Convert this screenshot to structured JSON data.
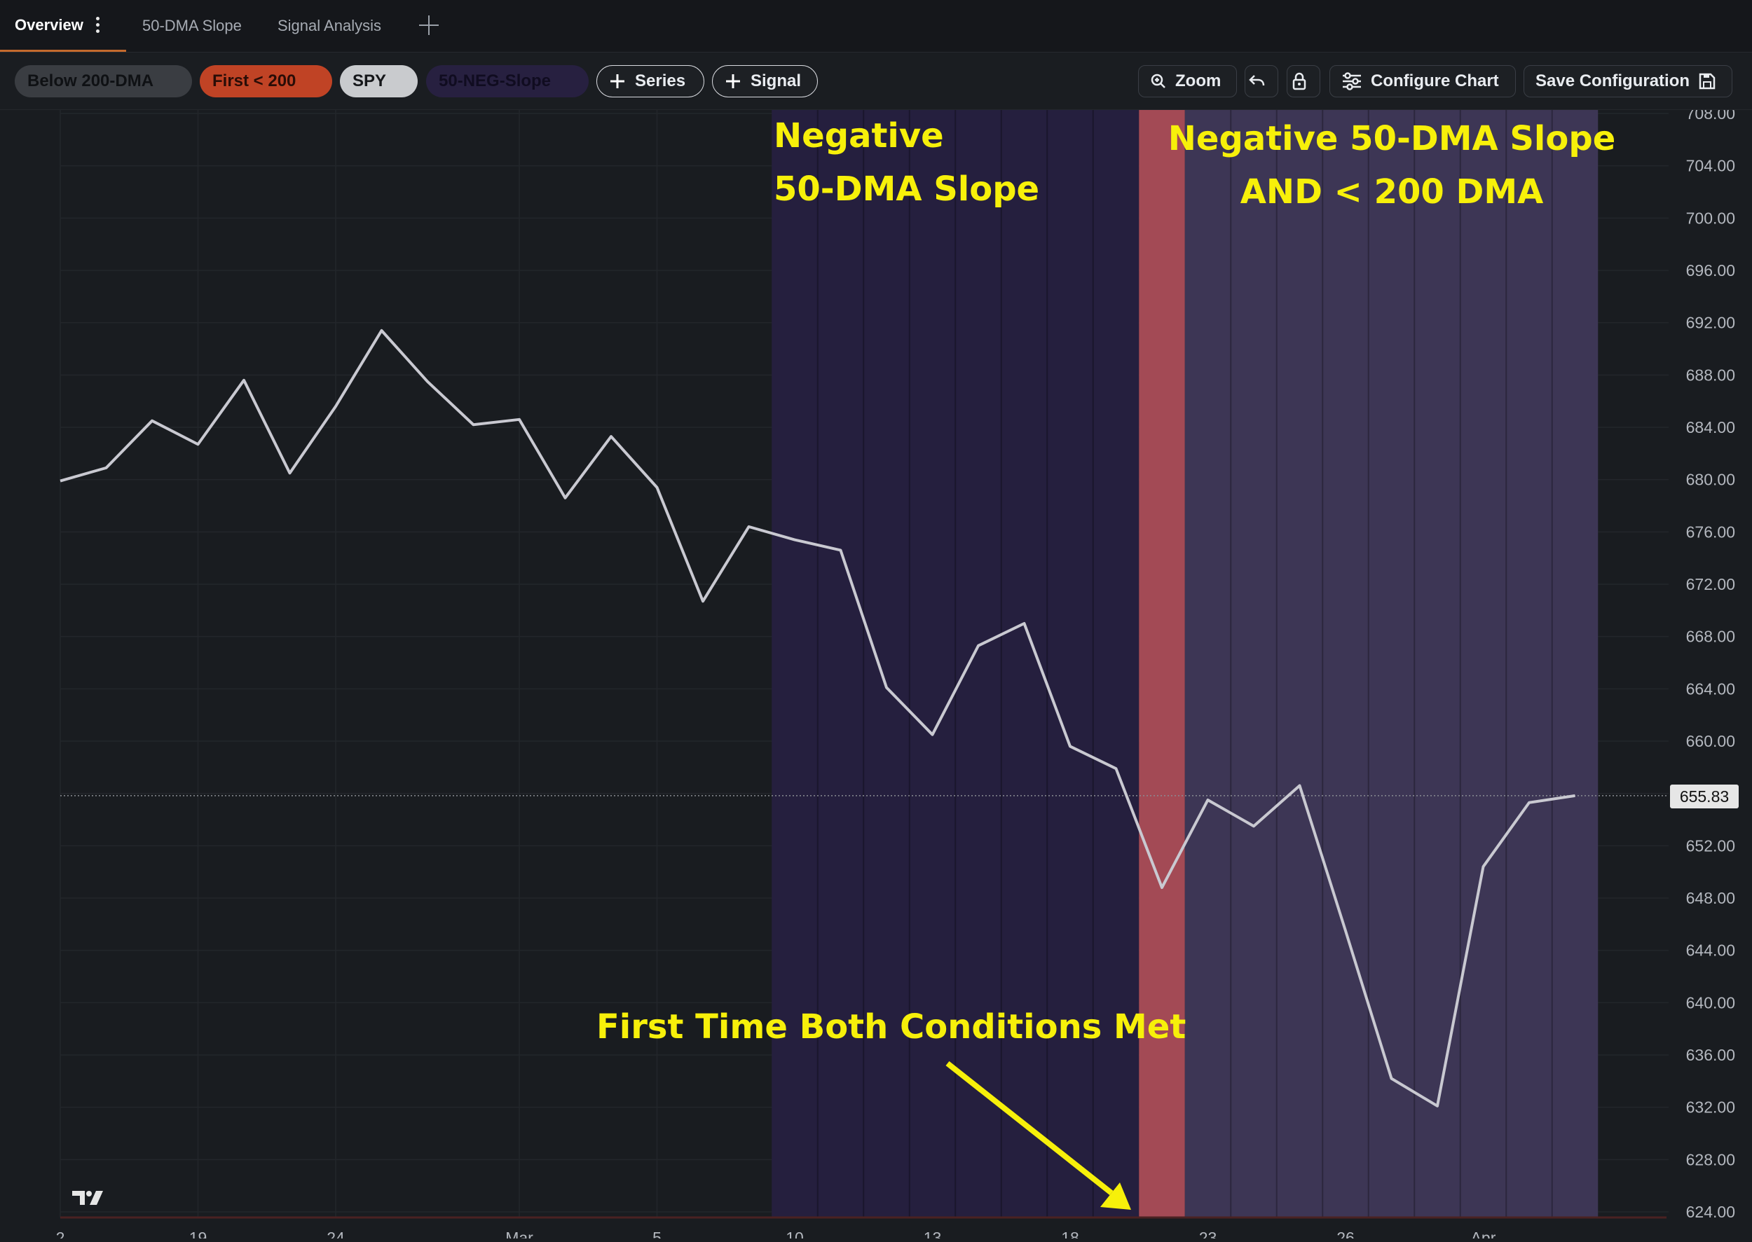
{
  "tabs": [
    {
      "label": "Overview",
      "active": true
    },
    {
      "label": "50-DMA Slope",
      "active": false
    },
    {
      "label": "Signal Analysis",
      "active": false
    }
  ],
  "toolbar": {
    "legend_pills": [
      {
        "label": "Below 200-DMA",
        "bg": "#3a3d42",
        "fg": "#0f1114"
      },
      {
        "label": "First < 200",
        "bg": "#c04325",
        "fg": "#2a0d07"
      },
      {
        "label": "SPY",
        "bg": "#c9cbce",
        "fg": "#15171a"
      },
      {
        "label": "50-NEG-Slope",
        "bg": "#272040",
        "fg": "#100c20"
      }
    ],
    "add_series_label": "Series",
    "add_signal_label": "Signal",
    "zoom_label": "Zoom",
    "configure_label": "Configure Chart",
    "save_label": "Save Configuration"
  },
  "annotations": {
    "neg_slope_line1": "Negative",
    "neg_slope_line2": "50-DMA Slope",
    "both_line1": "Negative 50-DMA Slope",
    "both_line2": "AND < 200 DMA",
    "first_time": "First Time Both Conditions Met"
  },
  "colors": {
    "line": "#c9c9d1",
    "neg_slope_region": "#251f3e",
    "first_cross_region": "#a34a55",
    "both_region": "#3d3655",
    "annotation": "#f7f00a"
  },
  "chart_data": {
    "type": "line",
    "title": "",
    "xlabel": "",
    "ylabel": "",
    "ylim": [
      624,
      708
    ],
    "y_ticks": [
      624,
      628,
      632,
      636,
      640,
      644,
      648,
      652,
      660,
      664,
      668,
      672,
      676,
      680,
      684,
      688,
      692,
      696,
      700,
      704,
      708
    ],
    "x_tick_labels": [
      {
        "label": "2",
        "index": 0
      },
      {
        "label": "19",
        "index": 3
      },
      {
        "label": "24",
        "index": 6
      },
      {
        "label": "Mar",
        "index": 10
      },
      {
        "label": "5",
        "index": 13
      },
      {
        "label": "10",
        "index": 16
      },
      {
        "label": "13",
        "index": 19
      },
      {
        "label": "18",
        "index": 22
      },
      {
        "label": "23",
        "index": 25
      },
      {
        "label": "26",
        "index": 28
      },
      {
        "label": "Apr",
        "index": 31
      }
    ],
    "series": [
      {
        "values": [
          679.9,
          680.9,
          684.5,
          682.7,
          687.6,
          680.5,
          685.6,
          691.4,
          687.5,
          684.2,
          684.6,
          678.6,
          683.3,
          679.4,
          670.7,
          676.4,
          675.4,
          674.6,
          664.1,
          660.5,
          667.3,
          669.0,
          659.6,
          657.9,
          648.8,
          655.5,
          653.5,
          656.6,
          645.5,
          634.2,
          632.1,
          650.4,
          655.3,
          655.83
        ]
      }
    ],
    "last_value": "655.83",
    "shaded_regions": [
      {
        "name": "50-NEG-Slope",
        "from_index": 15.5,
        "to_index": 23.5
      },
      {
        "name": "First < 200",
        "from_index": 23.5,
        "to_index": 24.5
      },
      {
        "name": "Below 200-DMA & 50-NEG-Slope",
        "from_index": 24.5,
        "to_index": 33.5
      }
    ],
    "grid": true
  }
}
